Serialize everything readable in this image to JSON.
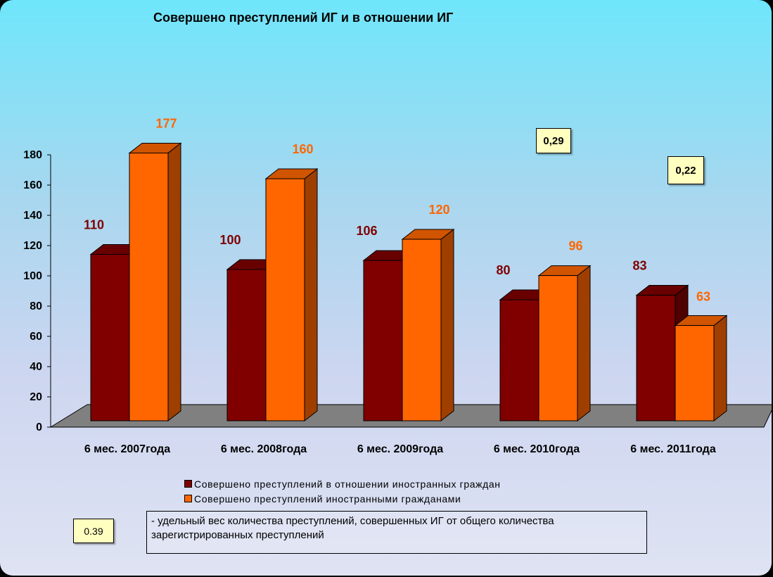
{
  "chart_data": {
    "type": "bar",
    "title": "Совершено преступлений ИГ и в отношении ИГ",
    "categories": [
      "6 мес.  2007года",
      "6 мес.  2008года",
      "6 мес.  2009года",
      "6 мес.  2010года",
      "6 мес.  2011года"
    ],
    "series": [
      {
        "name": "Совершено преступлений в отношении иностранных граждан",
        "values": [
          110,
          100,
          106,
          80,
          83
        ],
        "color": "#800000"
      },
      {
        "name": "Совершено преступлений иностранными гражданами",
        "values": [
          177,
          160,
          120,
          96,
          63
        ],
        "color": "#ff6600"
      }
    ],
    "ylim": [
      0,
      180
    ],
    "yticks": [
      "0",
      "20",
      "40",
      "60",
      "80",
      "100",
      "120",
      "140",
      "160",
      "180"
    ],
    "grid": false,
    "legend_position": "bottom"
  },
  "ratio_labels": {
    "y2010": "0,29",
    "y2011": "0,22"
  },
  "ratio_legend": {
    "value": "0.39",
    "text": "- удельный вес количества преступлений, совершенных ИГ от общего количества зарегистрированных преступлений"
  },
  "colors": {
    "series1_label": "#800000",
    "series2_label": "#ff6600",
    "floor": "#808080"
  }
}
